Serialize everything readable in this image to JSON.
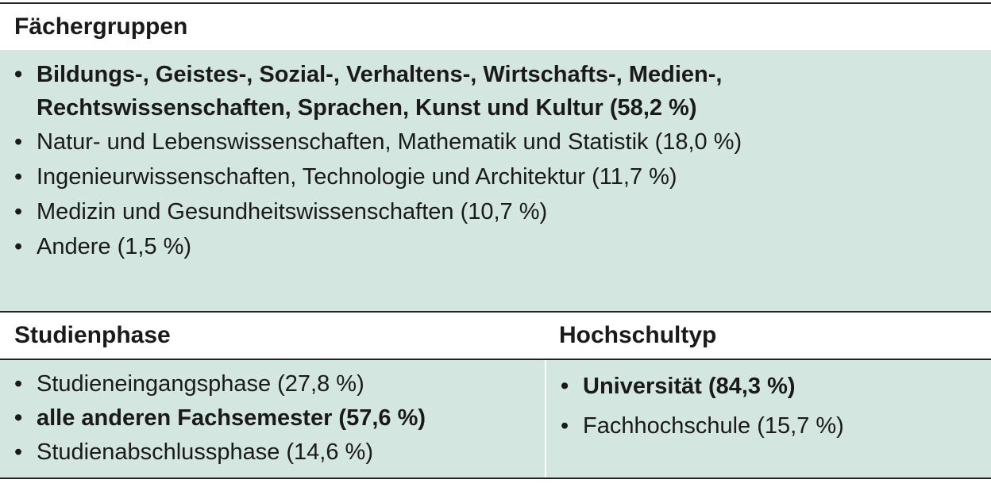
{
  "faechergruppen": {
    "title": "Fächergruppen",
    "items": [
      {
        "label": "Bildungs-, Geistes-, Sozial-, Verhaltens-, Wirtschafts-, Medien-, Rechtswissenschaften, Sprachen, Kunst und Kultur (58,2 %)",
        "bold": true
      },
      {
        "label": "Natur- und Lebenswissenschaften, Mathematik und Statistik (18,0 %)",
        "bold": false
      },
      {
        "label": "Ingenieurwissenschaften, Technologie und Architektur (11,7 %)",
        "bold": false
      },
      {
        "label": "Medizin und Gesundheitswissenschaften (10,7 %)",
        "bold": false
      },
      {
        "label": "Andere (1,5 %)",
        "bold": false
      }
    ]
  },
  "studienphase": {
    "title": "Studienphase",
    "items": [
      {
        "label": "Studieneingangsphase (27,8 %)",
        "bold": false
      },
      {
        "label": "alle anderen Fachsemester (57,6 %)",
        "bold": true
      },
      {
        "label": "Studienabschlussphase (14,6 %)",
        "bold": false
      }
    ]
  },
  "hochschultyp": {
    "title": "Hochschultyp",
    "items": [
      {
        "label": "Universität (84,3 %)",
        "bold": true
      },
      {
        "label": "Fachhochschule (15,7 %)",
        "bold": false
      }
    ]
  },
  "colors": {
    "band": "#d3e6e0",
    "rule": "#222222"
  }
}
